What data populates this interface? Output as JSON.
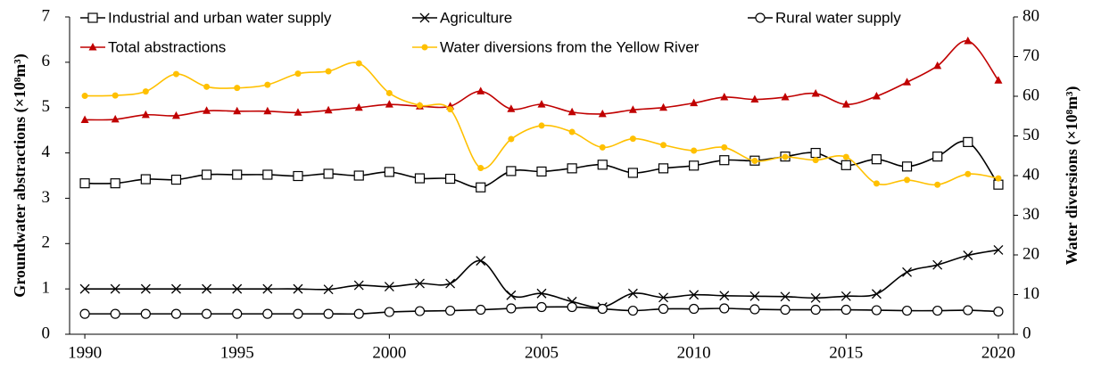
{
  "chart_data": {
    "type": "line",
    "x": [
      1990,
      1991,
      1992,
      1993,
      1994,
      1995,
      1996,
      1997,
      1998,
      1999,
      2000,
      2001,
      2002,
      2003,
      2004,
      2005,
      2006,
      2007,
      2008,
      2009,
      2010,
      2011,
      2012,
      2013,
      2014,
      2015,
      2016,
      2017,
      2018,
      2019,
      2020
    ],
    "xlim": [
      1989.5,
      2020.5
    ],
    "xticks": [
      1990,
      1995,
      2000,
      2005,
      2010,
      2015,
      2020
    ],
    "ylim": [
      0,
      7
    ],
    "yticks": [
      0,
      1,
      2,
      3,
      4,
      5,
      6,
      7
    ],
    "y2lim": [
      0,
      80
    ],
    "y2ticks": [
      0,
      10,
      20,
      30,
      40,
      50,
      60,
      70,
      80
    ],
    "ylabel": "Groundwater abstractions (×10⁸m³)",
    "y2label": "Water diversions (×10⁸m³)",
    "series": [
      {
        "name": "Industrial and urban water supply",
        "color": "#000000",
        "marker": "square",
        "values": [
          3.33,
          3.33,
          3.42,
          3.41,
          3.52,
          3.52,
          3.52,
          3.49,
          3.54,
          3.5,
          3.58,
          3.44,
          3.43,
          3.24,
          3.6,
          3.59,
          3.66,
          3.74,
          3.56,
          3.66,
          3.72,
          3.84,
          3.83,
          3.92,
          4.0,
          3.73,
          3.86,
          3.7,
          3.92,
          4.24,
          3.3
        ]
      },
      {
        "name": "Agriculture",
        "color": "#000000",
        "marker": "x",
        "values": [
          1.0,
          1.0,
          1.0,
          1.0,
          1.0,
          1.0,
          1.0,
          1.0,
          0.99,
          1.08,
          1.05,
          1.12,
          1.12,
          1.62,
          0.86,
          0.9,
          0.72,
          0.6,
          0.9,
          0.81,
          0.87,
          0.85,
          0.84,
          0.83,
          0.8,
          0.84,
          0.89,
          1.37,
          1.53,
          1.74,
          1.86
        ]
      },
      {
        "name": "Rural water supply",
        "color": "#000000",
        "marker": "circle",
        "values": [
          0.45,
          0.45,
          0.45,
          0.45,
          0.45,
          0.45,
          0.45,
          0.45,
          0.45,
          0.45,
          0.49,
          0.51,
          0.52,
          0.54,
          0.57,
          0.6,
          0.6,
          0.56,
          0.52,
          0.56,
          0.56,
          0.57,
          0.55,
          0.54,
          0.54,
          0.54,
          0.53,
          0.52,
          0.52,
          0.53,
          0.5
        ]
      },
      {
        "name": "Total abstractions",
        "color": "#c00000",
        "marker": "triangle",
        "values": [
          4.73,
          4.74,
          4.84,
          4.82,
          4.93,
          4.92,
          4.92,
          4.89,
          4.94,
          5.0,
          5.07,
          5.03,
          5.03,
          5.36,
          4.97,
          5.07,
          4.9,
          4.86,
          4.95,
          5.0,
          5.1,
          5.23,
          5.18,
          5.23,
          5.31,
          5.07,
          5.25,
          5.56,
          5.92,
          6.47,
          5.6
        ]
      },
      {
        "name": "Water diversions from the Yellow River",
        "color": "#ffc000",
        "marker": "dot",
        "axis": "y2",
        "values": [
          60.1,
          60.2,
          61.2,
          65.6,
          62.4,
          62.1,
          62.9,
          65.7,
          66.3,
          68.3,
          60.8,
          57.7,
          56.7,
          41.9,
          49.2,
          52.6,
          51.0,
          47.1,
          49.3,
          47.7,
          46.3,
          47.1,
          43.7,
          44.7,
          43.9,
          44.7,
          38.0,
          38.9,
          37.7,
          40.4,
          39.3
        ]
      }
    ]
  }
}
